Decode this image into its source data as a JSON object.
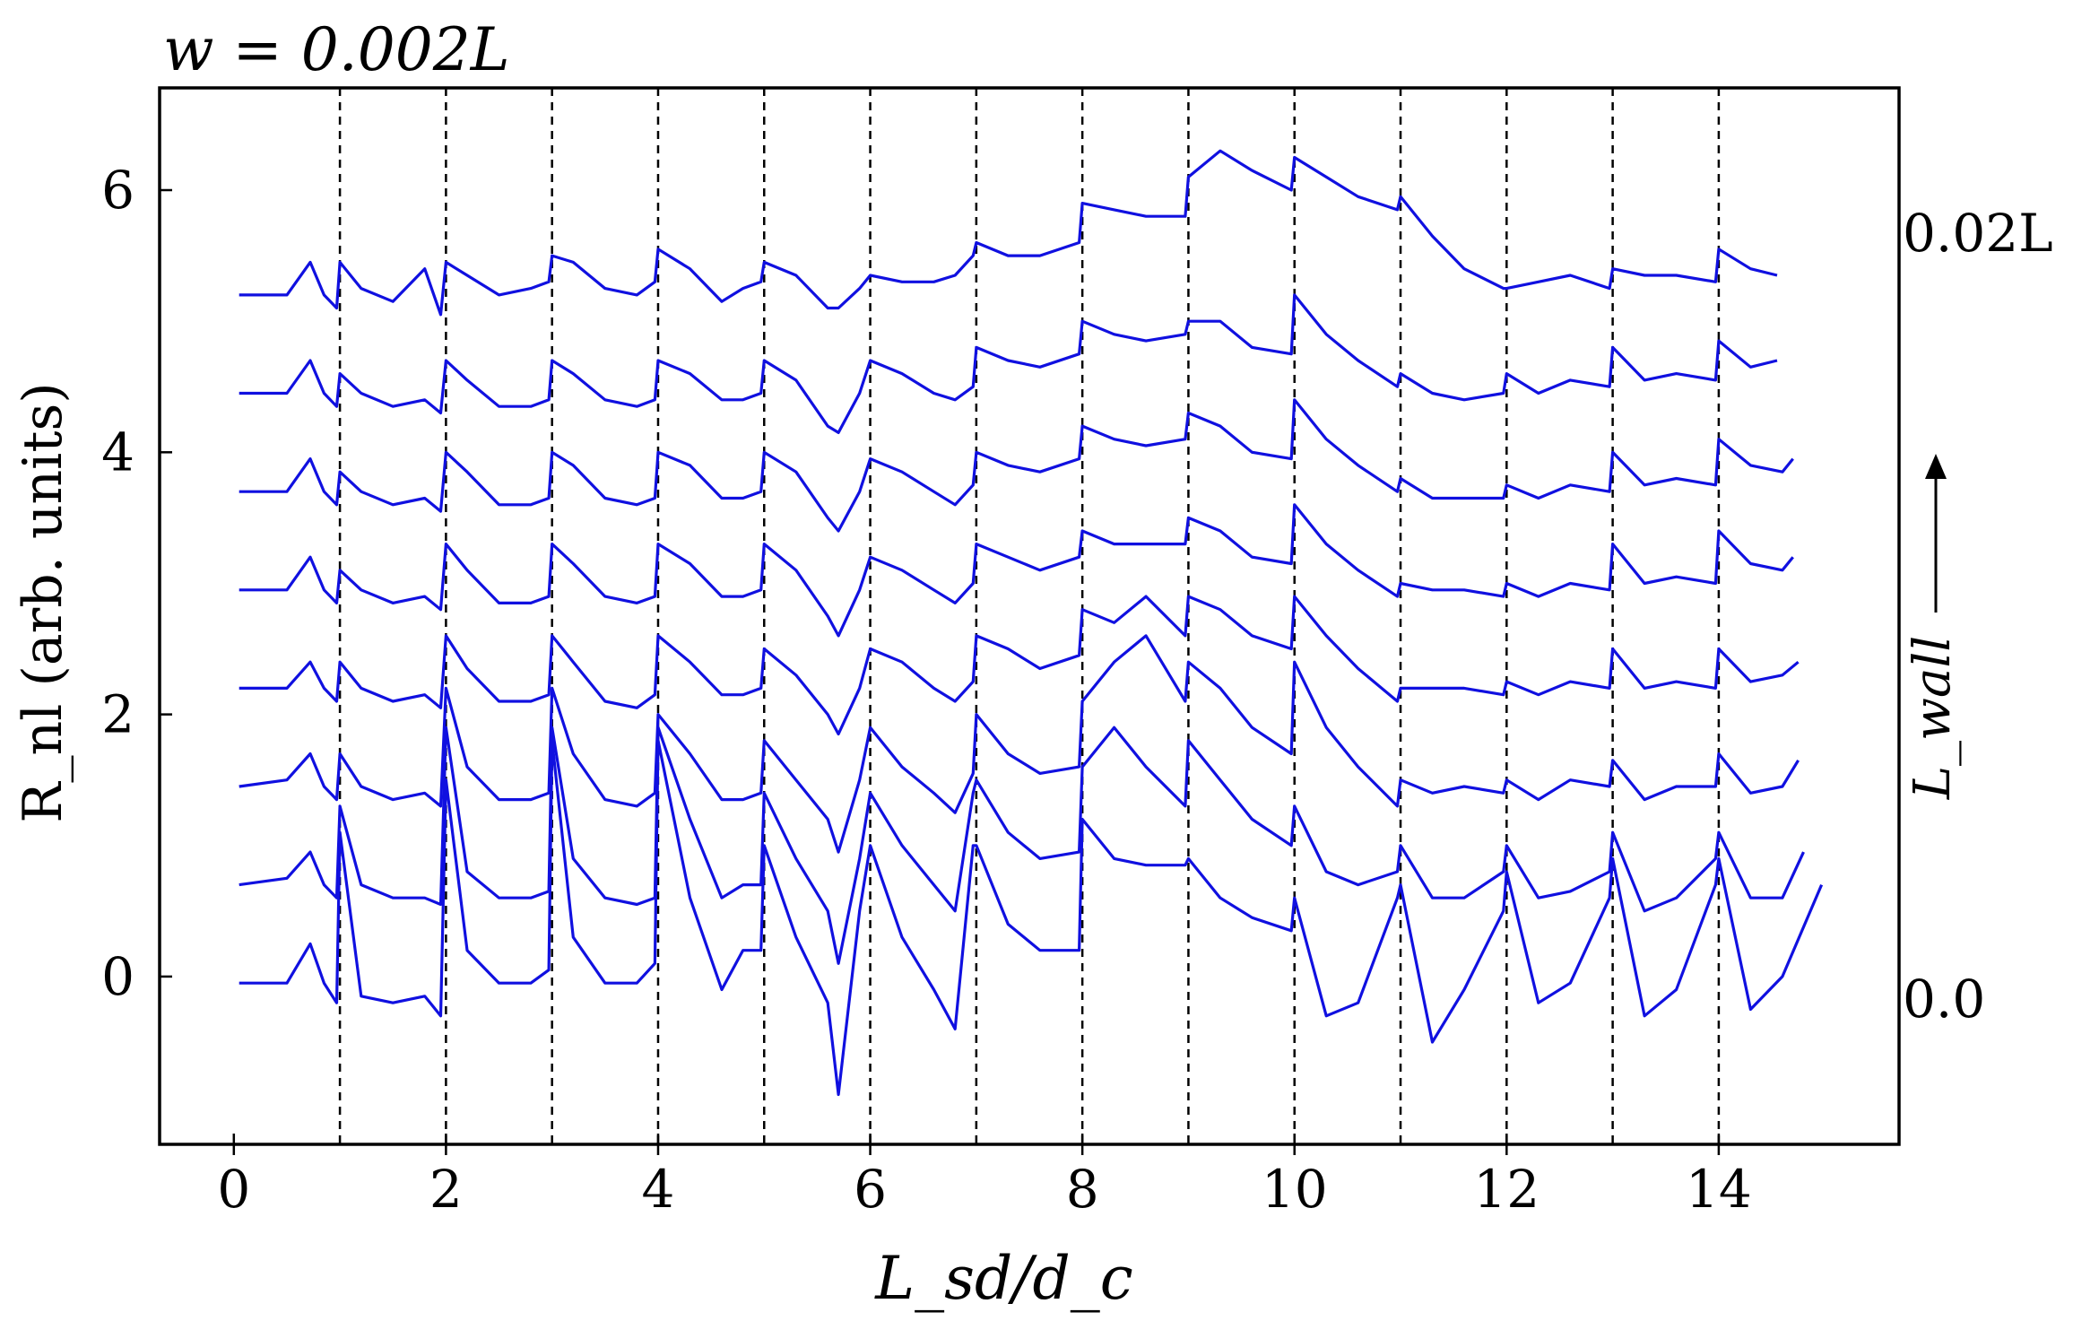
{
  "chart_data": {
    "type": "line",
    "title": "w = 0.002L",
    "xlabel": "L_sd/d_c",
    "ylabel": "R_nl (arb. units)",
    "xlim": [
      -0.7,
      15.7
    ],
    "ylim": [
      -1.28,
      6.78
    ],
    "x_ticks": [
      0,
      2,
      4,
      6,
      8,
      10,
      12,
      14
    ],
    "x_tick_labels": [
      "0",
      "2",
      "4",
      "6",
      "8",
      "10",
      "12",
      "14"
    ],
    "y_ticks": [
      0,
      2,
      4,
      6
    ],
    "y_tick_labels": [
      "0",
      "2",
      "4",
      "6"
    ],
    "vertical_lines": [
      1,
      2,
      3,
      4,
      5,
      6,
      7,
      8,
      9,
      10,
      11,
      12,
      13,
      14
    ],
    "right_annotations": {
      "top": "0.02L",
      "bottom": "0.0",
      "arrow_label": "L_wall"
    },
    "grid": false,
    "line_color": "#1010e0",
    "series": [
      {
        "offset": 0.0,
        "end_x": 14.97,
        "end_y": 0.7,
        "x": [
          0.05,
          0.5,
          0.72,
          0.85,
          0.97,
          1.0,
          1.2,
          1.5,
          1.8,
          1.95,
          2.0,
          2.2,
          2.5,
          2.8,
          2.97,
          3.0,
          3.2,
          3.5,
          3.8,
          3.97,
          4.0,
          4.3,
          4.6,
          4.8,
          4.97,
          5.0,
          5.3,
          5.6,
          5.7,
          5.9,
          6.0,
          6.3,
          6.6,
          6.8,
          6.97,
          7.0,
          7.3,
          7.6,
          7.97,
          8.0,
          8.3,
          8.6,
          8.97,
          9.0,
          9.3,
          9.6,
          9.97,
          10.0,
          10.3,
          10.6,
          10.97,
          11.0,
          11.3,
          11.6,
          11.97,
          12.0,
          12.3,
          12.6,
          12.97,
          13.0,
          13.3,
          13.6,
          13.97,
          14.0,
          14.3,
          14.6,
          14.97
        ],
        "y": [
          -0.05,
          -0.05,
          0.25,
          -0.05,
          -0.2,
          1.1,
          -0.15,
          -0.2,
          -0.15,
          -0.3,
          1.5,
          0.2,
          -0.05,
          -0.05,
          0.05,
          1.8,
          0.3,
          -0.05,
          -0.05,
          0.1,
          1.8,
          0.6,
          -0.1,
          0.2,
          0.2,
          1.0,
          0.3,
          -0.2,
          -0.9,
          0.5,
          1.0,
          0.3,
          -0.1,
          -0.4,
          1.0,
          1.0,
          0.4,
          0.2,
          0.2,
          1.2,
          0.9,
          0.85,
          0.85,
          0.9,
          0.6,
          0.45,
          0.35,
          0.6,
          -0.3,
          -0.2,
          0.6,
          0.7,
          -0.5,
          -0.1,
          0.5,
          0.8,
          -0.2,
          -0.05,
          0.6,
          0.9,
          -0.3,
          -0.1,
          0.7,
          0.9,
          -0.25,
          0.0,
          0.7
        ]
      },
      {
        "offset": 0.75,
        "end_x": 14.8,
        "end_y": 0.95,
        "x": [
          0.05,
          0.5,
          0.72,
          0.85,
          0.97,
          1.0,
          1.2,
          1.5,
          1.8,
          1.95,
          2.0,
          2.2,
          2.5,
          2.8,
          2.97,
          3.0,
          3.2,
          3.5,
          3.8,
          3.97,
          4.0,
          4.3,
          4.6,
          4.8,
          4.97,
          5.0,
          5.3,
          5.6,
          5.7,
          5.9,
          6.0,
          6.3,
          6.6,
          6.8,
          6.97,
          7.0,
          7.3,
          7.6,
          7.97,
          8.0,
          8.3,
          8.6,
          8.97,
          9.0,
          9.3,
          9.6,
          9.97,
          10.0,
          10.3,
          10.6,
          10.97,
          11.0,
          11.3,
          11.6,
          11.97,
          12.0,
          12.3,
          12.6,
          12.97,
          13.0,
          13.3,
          13.6,
          13.97,
          14.0,
          14.3,
          14.6,
          14.8
        ],
        "y": [
          0.7,
          0.75,
          0.95,
          0.7,
          0.6,
          1.3,
          0.7,
          0.6,
          0.6,
          0.55,
          1.9,
          0.8,
          0.6,
          0.6,
          0.65,
          1.9,
          0.9,
          0.6,
          0.55,
          0.6,
          1.9,
          1.2,
          0.6,
          0.7,
          0.7,
          1.4,
          0.9,
          0.5,
          0.1,
          0.9,
          1.4,
          1.0,
          0.7,
          0.5,
          1.4,
          1.5,
          1.1,
          0.9,
          0.95,
          1.6,
          1.9,
          1.6,
          1.3,
          1.8,
          1.5,
          1.2,
          1.0,
          1.3,
          0.8,
          0.7,
          0.8,
          1.0,
          0.6,
          0.6,
          0.8,
          1.0,
          0.6,
          0.65,
          0.8,
          1.1,
          0.5,
          0.6,
          0.9,
          1.1,
          0.6,
          0.6,
          0.95
        ]
      },
      {
        "offset": 1.5,
        "end_x": 14.75,
        "end_y": 1.65,
        "x": [
          0.05,
          0.5,
          0.72,
          0.85,
          0.97,
          1.0,
          1.2,
          1.5,
          1.8,
          1.95,
          2.0,
          2.2,
          2.5,
          2.8,
          2.97,
          3.0,
          3.2,
          3.5,
          3.8,
          3.97,
          4.0,
          4.3,
          4.6,
          4.8,
          4.97,
          5.0,
          5.3,
          5.6,
          5.7,
          5.9,
          6.0,
          6.3,
          6.6,
          6.8,
          6.97,
          7.0,
          7.3,
          7.6,
          7.97,
          8.0,
          8.3,
          8.6,
          8.97,
          9.0,
          9.3,
          9.6,
          9.97,
          10.0,
          10.3,
          10.6,
          10.97,
          11.0,
          11.3,
          11.6,
          11.97,
          12.0,
          12.3,
          12.6,
          12.97,
          13.0,
          13.3,
          13.6,
          13.97,
          14.0,
          14.3,
          14.6,
          14.75
        ],
        "y": [
          1.45,
          1.5,
          1.7,
          1.45,
          1.35,
          1.7,
          1.45,
          1.35,
          1.4,
          1.3,
          2.2,
          1.6,
          1.35,
          1.35,
          1.4,
          2.2,
          1.7,
          1.35,
          1.3,
          1.4,
          2.0,
          1.7,
          1.35,
          1.35,
          1.4,
          1.8,
          1.5,
          1.2,
          0.95,
          1.5,
          1.9,
          1.6,
          1.4,
          1.25,
          1.55,
          2.0,
          1.7,
          1.55,
          1.6,
          2.1,
          2.4,
          2.6,
          2.1,
          2.4,
          2.2,
          1.9,
          1.7,
          2.4,
          1.9,
          1.6,
          1.3,
          1.5,
          1.4,
          1.45,
          1.4,
          1.5,
          1.35,
          1.5,
          1.45,
          1.65,
          1.35,
          1.45,
          1.45,
          1.7,
          1.4,
          1.45,
          1.65
        ]
      },
      {
        "offset": 2.25,
        "end_x": 14.75,
        "end_y": 2.4,
        "x": [
          0.05,
          0.5,
          0.72,
          0.85,
          0.97,
          1.0,
          1.2,
          1.5,
          1.8,
          1.95,
          2.0,
          2.2,
          2.5,
          2.8,
          2.97,
          3.0,
          3.2,
          3.5,
          3.8,
          3.97,
          4.0,
          4.3,
          4.6,
          4.8,
          4.97,
          5.0,
          5.3,
          5.6,
          5.7,
          5.9,
          6.0,
          6.3,
          6.6,
          6.8,
          6.97,
          7.0,
          7.3,
          7.6,
          7.97,
          8.0,
          8.3,
          8.6,
          8.97,
          9.0,
          9.3,
          9.6,
          9.97,
          10.0,
          10.3,
          10.6,
          10.97,
          11.0,
          11.3,
          11.6,
          11.97,
          12.0,
          12.3,
          12.6,
          12.97,
          13.0,
          13.3,
          13.6,
          13.97,
          14.0,
          14.3,
          14.6,
          14.75
        ],
        "y": [
          2.2,
          2.2,
          2.4,
          2.2,
          2.1,
          2.4,
          2.2,
          2.1,
          2.15,
          2.05,
          2.6,
          2.35,
          2.1,
          2.1,
          2.15,
          2.6,
          2.4,
          2.1,
          2.05,
          2.15,
          2.6,
          2.4,
          2.15,
          2.15,
          2.2,
          2.5,
          2.3,
          2.0,
          1.85,
          2.2,
          2.5,
          2.4,
          2.2,
          2.1,
          2.25,
          2.6,
          2.5,
          2.35,
          2.45,
          2.8,
          2.7,
          2.9,
          2.6,
          2.9,
          2.8,
          2.6,
          2.5,
          2.9,
          2.6,
          2.35,
          2.1,
          2.2,
          2.2,
          2.2,
          2.15,
          2.25,
          2.15,
          2.25,
          2.2,
          2.5,
          2.2,
          2.25,
          2.2,
          2.5,
          2.25,
          2.3,
          2.4
        ]
      },
      {
        "offset": 3.0,
        "end_x": 14.7,
        "end_y": 3.2,
        "x": [
          0.05,
          0.5,
          0.72,
          0.85,
          0.97,
          1.0,
          1.2,
          1.5,
          1.8,
          1.95,
          2.0,
          2.2,
          2.5,
          2.8,
          2.97,
          3.0,
          3.2,
          3.5,
          3.8,
          3.97,
          4.0,
          4.3,
          4.6,
          4.8,
          4.97,
          5.0,
          5.3,
          5.6,
          5.7,
          5.9,
          6.0,
          6.3,
          6.6,
          6.8,
          6.97,
          7.0,
          7.3,
          7.6,
          7.97,
          8.0,
          8.3,
          8.6,
          8.97,
          9.0,
          9.3,
          9.6,
          9.97,
          10.0,
          10.3,
          10.6,
          10.97,
          11.0,
          11.3,
          11.6,
          11.97,
          12.0,
          12.3,
          12.6,
          12.97,
          13.0,
          13.3,
          13.6,
          13.97,
          14.0,
          14.3,
          14.6,
          14.7
        ],
        "y": [
          2.95,
          2.95,
          3.2,
          2.95,
          2.85,
          3.1,
          2.95,
          2.85,
          2.9,
          2.8,
          3.3,
          3.1,
          2.85,
          2.85,
          2.9,
          3.3,
          3.15,
          2.9,
          2.85,
          2.9,
          3.3,
          3.15,
          2.9,
          2.9,
          2.95,
          3.3,
          3.1,
          2.75,
          2.6,
          2.95,
          3.2,
          3.1,
          2.95,
          2.85,
          3.0,
          3.3,
          3.2,
          3.1,
          3.2,
          3.4,
          3.3,
          3.3,
          3.3,
          3.5,
          3.4,
          3.2,
          3.15,
          3.6,
          3.3,
          3.1,
          2.9,
          3.0,
          2.95,
          2.95,
          2.9,
          3.0,
          2.9,
          3.0,
          2.95,
          3.3,
          3.0,
          3.05,
          3.0,
          3.4,
          3.15,
          3.1,
          3.2
        ]
      },
      {
        "offset": 3.75,
        "end_x": 14.7,
        "end_y": 3.95,
        "x": [
          0.05,
          0.5,
          0.72,
          0.85,
          0.97,
          1.0,
          1.2,
          1.5,
          1.8,
          1.95,
          2.0,
          2.2,
          2.5,
          2.8,
          2.97,
          3.0,
          3.2,
          3.5,
          3.8,
          3.97,
          4.0,
          4.3,
          4.6,
          4.8,
          4.97,
          5.0,
          5.3,
          5.6,
          5.7,
          5.9,
          6.0,
          6.3,
          6.6,
          6.8,
          6.97,
          7.0,
          7.3,
          7.6,
          7.97,
          8.0,
          8.3,
          8.6,
          8.97,
          9.0,
          9.3,
          9.6,
          9.97,
          10.0,
          10.3,
          10.6,
          10.97,
          11.0,
          11.3,
          11.6,
          11.97,
          12.0,
          12.3,
          12.6,
          12.97,
          13.0,
          13.3,
          13.6,
          13.97,
          14.0,
          14.3,
          14.6,
          14.7
        ],
        "y": [
          3.7,
          3.7,
          3.95,
          3.7,
          3.6,
          3.85,
          3.7,
          3.6,
          3.65,
          3.55,
          4.0,
          3.85,
          3.6,
          3.6,
          3.65,
          4.0,
          3.9,
          3.65,
          3.6,
          3.65,
          4.0,
          3.9,
          3.65,
          3.65,
          3.7,
          4.0,
          3.85,
          3.5,
          3.4,
          3.7,
          3.95,
          3.85,
          3.7,
          3.6,
          3.75,
          4.0,
          3.9,
          3.85,
          3.95,
          4.2,
          4.1,
          4.05,
          4.1,
          4.3,
          4.2,
          4.0,
          3.95,
          4.4,
          4.1,
          3.9,
          3.7,
          3.8,
          3.65,
          3.65,
          3.65,
          3.75,
          3.65,
          3.75,
          3.7,
          4.0,
          3.75,
          3.8,
          3.75,
          4.1,
          3.9,
          3.85,
          3.95
        ]
      },
      {
        "offset": 4.5,
        "end_x": 14.55,
        "end_y": 4.7,
        "x": [
          0.05,
          0.5,
          0.72,
          0.85,
          0.97,
          1.0,
          1.2,
          1.5,
          1.8,
          1.95,
          2.0,
          2.2,
          2.5,
          2.8,
          2.97,
          3.0,
          3.2,
          3.5,
          3.8,
          3.97,
          4.0,
          4.3,
          4.6,
          4.8,
          4.97,
          5.0,
          5.3,
          5.6,
          5.7,
          5.9,
          6.0,
          6.3,
          6.6,
          6.8,
          6.97,
          7.0,
          7.3,
          7.6,
          7.97,
          8.0,
          8.3,
          8.6,
          8.97,
          9.0,
          9.3,
          9.6,
          9.97,
          10.0,
          10.3,
          10.6,
          10.97,
          11.0,
          11.3,
          11.6,
          11.97,
          12.0,
          12.3,
          12.6,
          12.97,
          13.0,
          13.3,
          13.6,
          13.97,
          14.0,
          14.3,
          14.55
        ],
        "y": [
          4.45,
          4.45,
          4.7,
          4.45,
          4.35,
          4.6,
          4.45,
          4.35,
          4.4,
          4.3,
          4.7,
          4.55,
          4.35,
          4.35,
          4.4,
          4.7,
          4.6,
          4.4,
          4.35,
          4.4,
          4.7,
          4.6,
          4.4,
          4.4,
          4.45,
          4.7,
          4.55,
          4.2,
          4.15,
          4.45,
          4.7,
          4.6,
          4.45,
          4.4,
          4.5,
          4.8,
          4.7,
          4.65,
          4.75,
          5.0,
          4.9,
          4.85,
          4.9,
          5.0,
          5.0,
          4.8,
          4.75,
          5.2,
          4.9,
          4.7,
          4.5,
          4.6,
          4.45,
          4.4,
          4.45,
          4.6,
          4.45,
          4.55,
          4.5,
          4.8,
          4.55,
          4.6,
          4.55,
          4.85,
          4.65,
          4.7
        ]
      },
      {
        "offset": 5.25,
        "end_x": 14.55,
        "end_y": 5.35,
        "x": [
          0.05,
          0.5,
          0.72,
          0.85,
          0.97,
          1.0,
          1.2,
          1.5,
          1.8,
          1.95,
          2.0,
          2.2,
          2.5,
          2.8,
          2.97,
          3.0,
          3.2,
          3.5,
          3.8,
          3.97,
          4.0,
          4.3,
          4.6,
          4.8,
          4.97,
          5.0,
          5.3,
          5.6,
          5.7,
          5.9,
          6.0,
          6.3,
          6.6,
          6.8,
          6.97,
          7.0,
          7.3,
          7.6,
          7.97,
          8.0,
          8.3,
          8.6,
          8.97,
          9.0,
          9.3,
          9.6,
          9.97,
          10.0,
          10.3,
          10.6,
          10.97,
          11.0,
          11.3,
          11.6,
          11.97,
          12.0,
          12.3,
          12.6,
          12.97,
          13.0,
          13.3,
          13.6,
          13.97,
          14.0,
          14.3,
          14.55
        ],
        "y": [
          5.2,
          5.2,
          5.45,
          5.2,
          5.1,
          5.45,
          5.25,
          5.15,
          5.4,
          5.05,
          5.45,
          5.35,
          5.2,
          5.25,
          5.3,
          5.5,
          5.45,
          5.25,
          5.2,
          5.3,
          5.55,
          5.4,
          5.15,
          5.25,
          5.3,
          5.45,
          5.35,
          5.1,
          5.1,
          5.25,
          5.35,
          5.3,
          5.3,
          5.35,
          5.5,
          5.6,
          5.5,
          5.5,
          5.6,
          5.9,
          5.85,
          5.8,
          5.8,
          6.1,
          6.3,
          6.15,
          6.0,
          6.25,
          6.1,
          5.95,
          5.85,
          5.95,
          5.65,
          5.4,
          5.25,
          5.25,
          5.3,
          5.35,
          5.25,
          5.4,
          5.35,
          5.35,
          5.3,
          5.55,
          5.4,
          5.35
        ]
      }
    ]
  }
}
